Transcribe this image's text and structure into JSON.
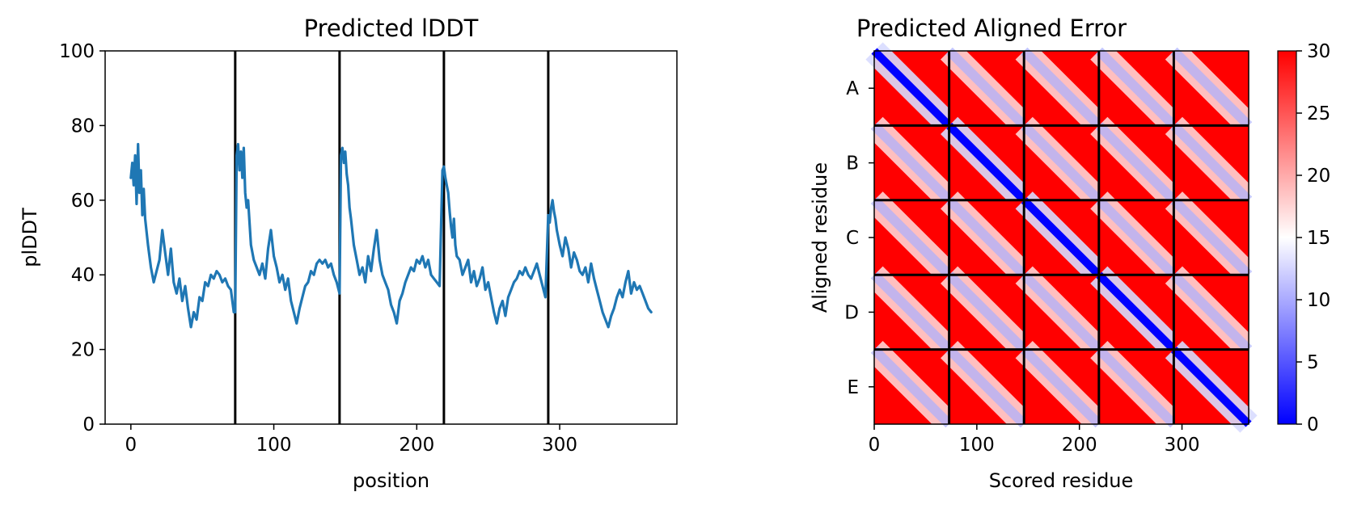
{
  "chart_data": [
    {
      "type": "line",
      "title": "Predicted lDDT",
      "xlabel": "position",
      "ylabel": "plDDT",
      "xlim": [
        -18,
        382
      ],
      "ylim": [
        0,
        100
      ],
      "xticks": [
        0,
        100,
        200,
        300
      ],
      "yticks": [
        0,
        20,
        40,
        60,
        80,
        100
      ],
      "chain_boundaries": [
        73,
        146,
        219,
        292
      ],
      "series_color": "#1f77b4",
      "series": [
        {
          "x": [
            0,
            1,
            2,
            3,
            4,
            5,
            6,
            7,
            8,
            9,
            10,
            12,
            14,
            16,
            18,
            20,
            22,
            24,
            26,
            28,
            30,
            32,
            34,
            36,
            38,
            40,
            42,
            44,
            46,
            48,
            50,
            52,
            54,
            56,
            58,
            60,
            62,
            64,
            66,
            68,
            70,
            72,
            73,
            74,
            75,
            76,
            77,
            78,
            79,
            80,
            81,
            82,
            84,
            86,
            88,
            90,
            92,
            94,
            96,
            98,
            100,
            102,
            104,
            106,
            108,
            110,
            112,
            114,
            116,
            118,
            120,
            122,
            124,
            126,
            128,
            130,
            132,
            134,
            136,
            138,
            140,
            142,
            144,
            146,
            147,
            148,
            149,
            150,
            151,
            152,
            153,
            154,
            156,
            158,
            160,
            162,
            164,
            166,
            168,
            170,
            172,
            174,
            176,
            178,
            180,
            182,
            184,
            186,
            188,
            190,
            192,
            194,
            196,
            198,
            200,
            202,
            204,
            206,
            208,
            210,
            212,
            214,
            216,
            218,
            219,
            220,
            221,
            222,
            223,
            224,
            225,
            226,
            227,
            228,
            230,
            232,
            234,
            236,
            238,
            240,
            242,
            244,
            246,
            248,
            250,
            252,
            254,
            256,
            258,
            260,
            262,
            264,
            266,
            268,
            270,
            272,
            274,
            276,
            278,
            280,
            282,
            284,
            286,
            288,
            290,
            292,
            293,
            294,
            295,
            296,
            297,
            298,
            299,
            300,
            302,
            304,
            306,
            308,
            310,
            312,
            314,
            316,
            318,
            320,
            322,
            324,
            326,
            328,
            330,
            332,
            334,
            336,
            338,
            340,
            342,
            344,
            346,
            348,
            350,
            352,
            354,
            356,
            358,
            360,
            362,
            364
          ],
          "y": [
            66,
            70,
            64,
            72,
            59,
            75,
            62,
            68,
            56,
            63,
            55,
            48,
            42,
            38,
            41,
            44,
            52,
            46,
            40,
            47,
            38,
            35,
            39,
            33,
            37,
            31,
            26,
            30,
            28,
            34,
            33,
            38,
            37,
            40,
            39,
            41,
            40,
            38,
            39,
            37,
            36,
            30,
            30,
            72,
            75,
            68,
            73,
            66,
            74,
            62,
            58,
            60,
            48,
            44,
            42,
            40,
            43,
            39,
            47,
            52,
            45,
            42,
            38,
            40,
            36,
            39,
            33,
            30,
            27,
            31,
            34,
            37,
            38,
            41,
            40,
            43,
            44,
            43,
            44,
            42,
            43,
            40,
            38,
            35,
            72,
            74,
            70,
            73,
            67,
            64,
            58,
            55,
            48,
            44,
            40,
            42,
            38,
            45,
            41,
            47,
            52,
            44,
            40,
            38,
            36,
            32,
            30,
            27,
            33,
            35,
            38,
            40,
            42,
            41,
            44,
            43,
            45,
            42,
            44,
            40,
            39,
            38,
            37,
            68,
            69,
            66,
            64,
            62,
            57,
            53,
            50,
            55,
            48,
            45,
            44,
            40,
            42,
            44,
            38,
            41,
            37,
            39,
            42,
            36,
            38,
            34,
            30,
            27,
            31,
            33,
            29,
            34,
            36,
            38,
            39,
            41,
            40,
            42,
            40,
            39,
            41,
            43,
            40,
            37,
            34,
            56,
            54,
            58,
            60,
            57,
            55,
            52,
            50,
            48,
            45,
            50,
            47,
            42,
            46,
            44,
            41,
            40,
            42,
            38,
            43,
            39,
            36,
            33,
            30,
            28,
            26,
            29,
            31,
            34,
            36,
            34,
            38,
            41,
            35,
            38,
            36,
            37,
            35,
            33,
            31,
            30
          ]
        }
      ]
    },
    {
      "type": "heatmap",
      "title": "Predicted Aligned Error",
      "xlabel": "Scored residue",
      "ylabel": "Aligned residue",
      "xlim": [
        0,
        365
      ],
      "xticks": [
        0,
        100,
        200,
        300
      ],
      "row_labels": [
        "A",
        "B",
        "C",
        "D",
        "E"
      ],
      "chain_boundaries": [
        73,
        146,
        219,
        292
      ],
      "colorbar": {
        "min": 0,
        "max": 30,
        "ticks": [
          0,
          5,
          10,
          15,
          20,
          25,
          30
        ],
        "colors": [
          "#0000ff",
          "#ffffff",
          "#ff0000"
        ]
      }
    }
  ]
}
